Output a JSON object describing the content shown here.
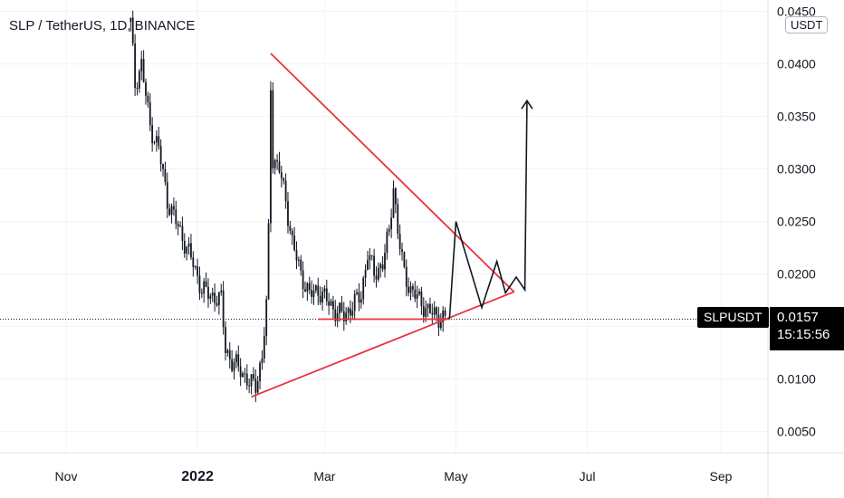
{
  "title": "SLP / TetherUS, 1D, BINANCE",
  "currency": "USDT",
  "symbol": "SLPUSDT",
  "last_price": "0.0157",
  "countdown": "15:15:56",
  "colors": {
    "pattern": "#e8323c",
    "projection": "#131722",
    "candles": "#131722"
  },
  "chart_data": {
    "type": "candlestick",
    "x_axis_ticks": [
      "Nov",
      "2022",
      "Mar",
      "May",
      "Jul",
      "Sep"
    ],
    "y_axis_ticks": [
      "0.0450",
      "0.0400",
      "0.0350",
      "0.0300",
      "0.0250",
      "0.0200",
      "0.0150",
      "0.0100",
      "0.0050"
    ],
    "ylim": [
      0.0,
      0.0455
    ],
    "grid": true,
    "price_line": 0.0157,
    "price_path": [
      [
        "2021-12-01",
        0.044
      ],
      [
        "2021-12-03",
        0.038
      ],
      [
        "2021-12-06",
        0.04
      ],
      [
        "2021-12-10",
        0.034
      ],
      [
        "2021-12-14",
        0.032
      ],
      [
        "2021-12-18",
        0.027
      ],
      [
        "2021-12-22",
        0.025
      ],
      [
        "2021-12-26",
        0.023
      ],
      [
        "2021-12-30",
        0.021
      ],
      [
        "2022-01-03",
        0.0185
      ],
      [
        "2022-01-07",
        0.018
      ],
      [
        "2022-01-12",
        0.0175
      ],
      [
        "2022-01-14",
        0.013
      ],
      [
        "2022-01-17",
        0.0115
      ],
      [
        "2022-01-21",
        0.011
      ],
      [
        "2022-01-25",
        0.0095
      ],
      [
        "2022-01-28",
        0.0095
      ],
      [
        "2022-01-31",
        0.012
      ],
      [
        "2022-02-02",
        0.017
      ],
      [
        "2022-02-03",
        0.024
      ],
      [
        "2022-02-04",
        0.038
      ],
      [
        "2022-02-05",
        0.031
      ],
      [
        "2022-02-08",
        0.03
      ],
      [
        "2022-02-11",
        0.027
      ],
      [
        "2022-02-14",
        0.023
      ],
      [
        "2022-02-18",
        0.02
      ],
      [
        "2022-02-22",
        0.018
      ],
      [
        "2022-02-26",
        0.0185
      ],
      [
        "2022-03-02",
        0.0175
      ],
      [
        "2022-03-06",
        0.0165
      ],
      [
        "2022-03-10",
        0.016
      ],
      [
        "2022-03-14",
        0.017
      ],
      [
        "2022-03-18",
        0.018
      ],
      [
        "2022-03-21",
        0.022
      ],
      [
        "2022-03-24",
        0.02
      ],
      [
        "2022-03-28",
        0.021
      ],
      [
        "2022-03-31",
        0.024
      ],
      [
        "2022-04-02",
        0.0285
      ],
      [
        "2022-04-04",
        0.024
      ],
      [
        "2022-04-07",
        0.02
      ],
      [
        "2022-04-10",
        0.0185
      ],
      [
        "2022-04-14",
        0.0175
      ],
      [
        "2022-04-18",
        0.0165
      ],
      [
        "2022-04-22",
        0.016
      ],
      [
        "2022-04-26",
        0.0157
      ]
    ],
    "drawings": [
      {
        "type": "resistance",
        "from": [
          "2022-02-04",
          0.041
        ],
        "to": [
          "2022-05-28",
          0.0183
        ]
      },
      {
        "type": "support",
        "from": [
          "2022-01-26",
          0.0083
        ],
        "to": [
          "2022-05-28",
          0.0183
        ]
      },
      {
        "type": "horizontal-support",
        "from": [
          "2022-02-26",
          0.0157
        ],
        "to": [
          "2022-04-28",
          0.0157
        ]
      },
      {
        "type": "projection",
        "points": [
          [
            "2022-04-28",
            0.0157
          ],
          [
            "2022-05-01",
            0.025
          ],
          [
            "2022-05-13",
            0.0168
          ],
          [
            "2022-05-20",
            0.0212
          ],
          [
            "2022-05-24",
            0.0182
          ],
          [
            "2022-05-29",
            0.0197
          ],
          [
            "2022-06-02",
            0.0185
          ],
          [
            "2022-06-03",
            0.0365
          ]
        ],
        "arrow": "up"
      }
    ]
  }
}
